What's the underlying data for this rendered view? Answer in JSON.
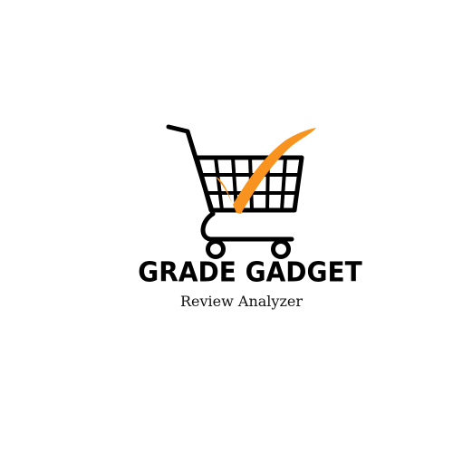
{
  "logo": {
    "icon": "shopping-cart-with-checkmark",
    "cart_color": "#000000",
    "check_color": "#F7931E"
  },
  "brand": {
    "name": "GRADE GADGET",
    "tagline": "Review Analyzer"
  }
}
